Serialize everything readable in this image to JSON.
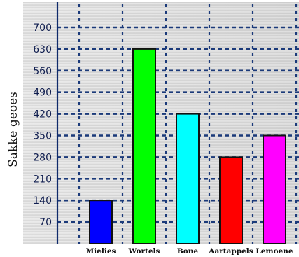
{
  "chart_data": {
    "type": "bar",
    "title": "",
    "xlabel": "",
    "ylabel": "Sakke geoes",
    "categories": [
      "Mielies",
      "Wortels",
      "Bone",
      "Aartappels",
      "Lemoene"
    ],
    "values": [
      140,
      630,
      420,
      280,
      350
    ],
    "colors": [
      "#0000ff",
      "#00ff00",
      "#00ffff",
      "#ff0000",
      "#ff00ff"
    ],
    "ylim": [
      0,
      770
    ],
    "yticks": [
      70,
      140,
      210,
      280,
      350,
      420,
      490,
      560,
      630,
      700
    ],
    "grid": true,
    "legend": "none"
  }
}
